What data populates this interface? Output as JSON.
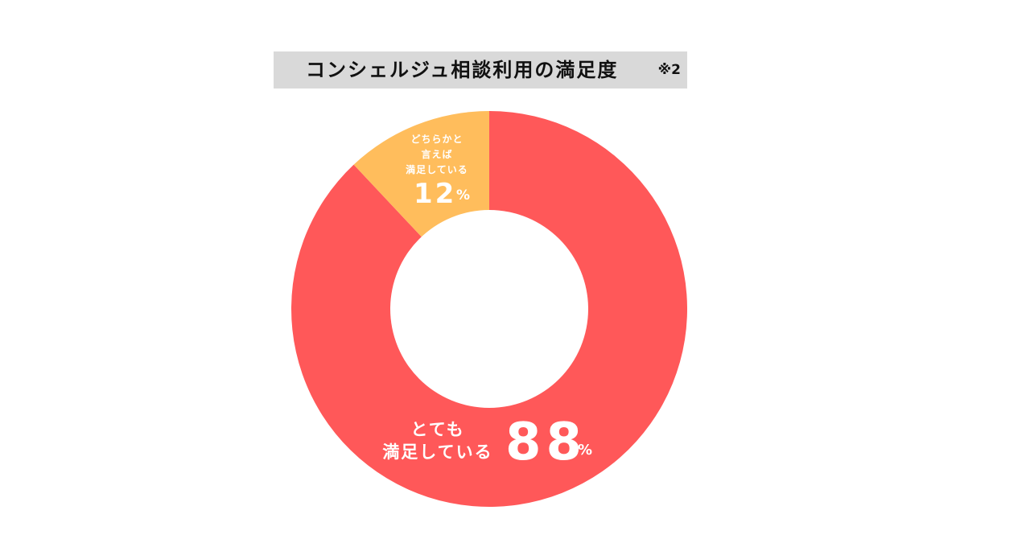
{
  "title": "コンシェルジュ相談利用の満足度",
  "note": "※2",
  "colors": {
    "very_satisfied": "#ff5859",
    "somewhat_satisfied": "#ffbd5c",
    "title_bg": "#d9d9d9"
  },
  "chart_data": {
    "type": "pie",
    "title": "コンシェルジュ相談利用の満足度",
    "categories": [
      "とても満足している",
      "どちらかと言えば満足している"
    ],
    "values": [
      88,
      12
    ],
    "unit": "%",
    "donut": true,
    "slices": [
      {
        "label_lines": [
          "とても",
          "満足している"
        ],
        "value": "88",
        "unit": "%",
        "color": "#ff5859"
      },
      {
        "label_lines": [
          "どちらかと",
          "言えば",
          "満足している"
        ],
        "value": "12",
        "unit": "%",
        "color": "#ffbd5c"
      }
    ]
  }
}
